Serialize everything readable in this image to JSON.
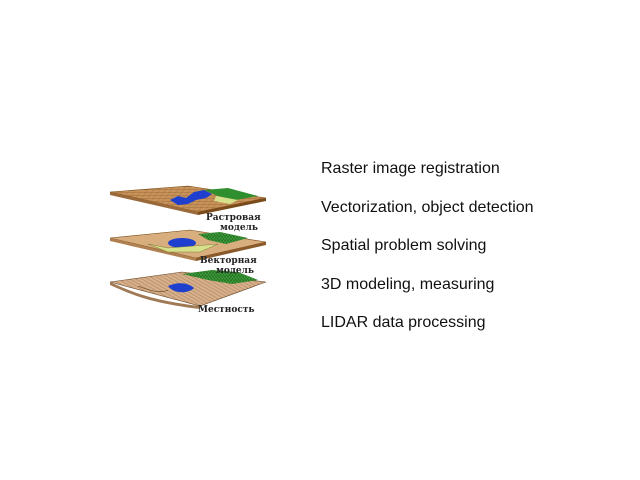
{
  "illustration": {
    "layers": [
      {
        "label_line1": "Растровая",
        "label_line2": "модель"
      },
      {
        "label_line1": "Векторная",
        "label_line2": "модель"
      },
      {
        "label_line1": "Местность",
        "label_line2": ""
      }
    ]
  },
  "features": [
    {
      "label": "Raster image registration"
    },
    {
      "label": "Vectorization, object detection"
    },
    {
      "label": "Spatial problem solving"
    },
    {
      "label": "3D modeling, measuring"
    },
    {
      "label": "LIDAR data processing"
    }
  ],
  "colors": {
    "raster_tan": "#c8935a",
    "vector_tan": "#d9ae7e",
    "terrain_tan": "#d8b08c",
    "water": "#1f3fcf",
    "vegetation": "#2f8f2f",
    "meadow": "#d6e08a"
  }
}
